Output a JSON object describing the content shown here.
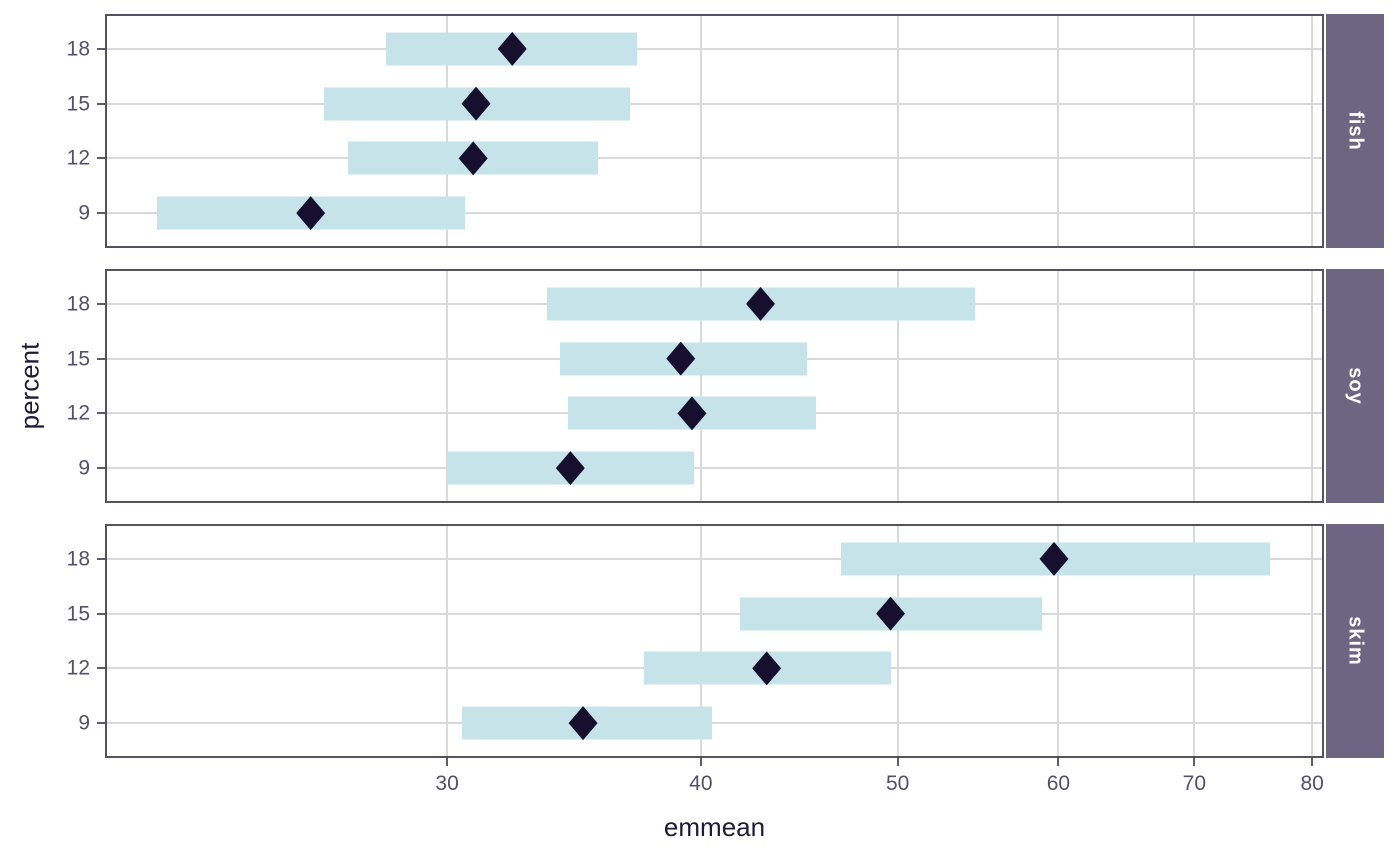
{
  "colors": {
    "background": "#ffffff",
    "bar_fill": "#c6e3e9",
    "point_fill": "#16102e",
    "strip_bg": "#6d6683",
    "strip_text": "#ffffff",
    "panel_border": "#55515f",
    "gridline": "#d9d9d9",
    "tick_mark": "#5f5a70",
    "tick_label_text": "#554f6b",
    "axis_title_text": "#1e1b3a"
  },
  "chart_data": {
    "type": "scatter",
    "subtype": "point-interval (emmeans-style confidence interval plot, faceted by source)",
    "title": "",
    "xlabel": "emmean",
    "ylabel": "percent",
    "x_scale": "log10",
    "x_domain": [
      20.4,
      80.9
    ],
    "x_ticks": [
      30,
      40,
      50,
      60,
      70,
      80
    ],
    "y_categories_top_to_bottom": [
      "18",
      "15",
      "12",
      "9"
    ],
    "grid": "major gridlines only, light gray, white panel background",
    "legend_position": "none",
    "facet_strip_position": "right, rotated 90deg",
    "facets": [
      {
        "label": "fish",
        "rows": [
          {
            "percent": "18",
            "lower": 28.0,
            "emmean": 32.3,
            "upper": 37.2
          },
          {
            "percent": "15",
            "lower": 26.1,
            "emmean": 31.0,
            "upper": 36.9
          },
          {
            "percent": "12",
            "lower": 26.8,
            "emmean": 30.9,
            "upper": 35.6
          },
          {
            "percent": "9",
            "lower": 21.6,
            "emmean": 25.7,
            "upper": 30.6
          }
        ]
      },
      {
        "label": "soy",
        "rows": [
          {
            "percent": "18",
            "lower": 33.6,
            "emmean": 42.8,
            "upper": 54.6
          },
          {
            "percent": "15",
            "lower": 34.1,
            "emmean": 39.1,
            "upper": 45.1
          },
          {
            "percent": "12",
            "lower": 34.4,
            "emmean": 39.6,
            "upper": 45.6
          },
          {
            "percent": "9",
            "lower": 30.0,
            "emmean": 34.5,
            "upper": 39.7
          }
        ]
      },
      {
        "label": "skim",
        "rows": [
          {
            "percent": "18",
            "lower": 46.9,
            "emmean": 59.7,
            "upper": 76.3
          },
          {
            "percent": "15",
            "lower": 41.8,
            "emmean": 49.6,
            "upper": 58.9
          },
          {
            "percent": "12",
            "lower": 37.5,
            "emmean": 43.1,
            "upper": 49.6
          },
          {
            "percent": "9",
            "lower": 30.5,
            "emmean": 35.0,
            "upper": 40.5
          }
        ]
      }
    ]
  }
}
